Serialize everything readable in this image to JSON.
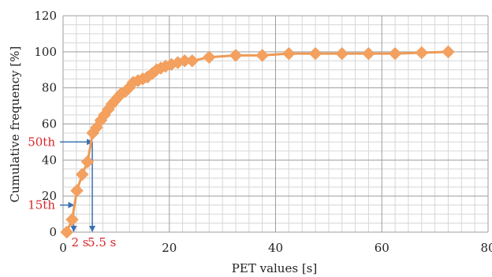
{
  "colors": {
    "series": "#f4a05f",
    "series_line": "#ee9a55",
    "grid_major": "#9e9e9e",
    "grid_minor": "#d6d6d6",
    "annotation_line": "#3b6fb3",
    "annotation_text": "#d9252b"
  },
  "chart_data": {
    "type": "line",
    "title": "",
    "xlabel": "PET values [s]",
    "ylabel": "Cumulative frequency [%]",
    "xlim": [
      0,
      80
    ],
    "ylim": [
      0,
      120
    ],
    "x_ticks": [
      0,
      20,
      40,
      60,
      80
    ],
    "y_ticks": [
      0,
      20,
      40,
      60,
      80,
      100,
      120
    ],
    "x_minor_step": 2.5,
    "y_minor_step": 5,
    "grid": true,
    "legend": "none",
    "series": [
      {
        "marker": "diamond",
        "points": [
          [
            0.7,
            0
          ],
          [
            1.7,
            7
          ],
          [
            2.6,
            23
          ],
          [
            3.6,
            32
          ],
          [
            4.6,
            39
          ],
          [
            5.6,
            55
          ],
          [
            6.3,
            58
          ],
          [
            7.1,
            62
          ],
          [
            7.8,
            65
          ],
          [
            8.5,
            68
          ],
          [
            9.2,
            71
          ],
          [
            9.8,
            73
          ],
          [
            10.4,
            75
          ],
          [
            11.0,
            77
          ],
          [
            11.7,
            78
          ],
          [
            12.4,
            80
          ],
          [
            13.2,
            83
          ],
          [
            14.1,
            84
          ],
          [
            15.0,
            85
          ],
          [
            15.9,
            86
          ],
          [
            16.8,
            88
          ],
          [
            17.6,
            90
          ],
          [
            18.4,
            91
          ],
          [
            19.3,
            92
          ],
          [
            20.4,
            93
          ],
          [
            21.6,
            94
          ],
          [
            22.9,
            95
          ],
          [
            24.3,
            95
          ],
          [
            27.5,
            97
          ],
          [
            32.5,
            98
          ],
          [
            37.5,
            98
          ],
          [
            42.5,
            99
          ],
          [
            47.5,
            99
          ],
          [
            52.5,
            99
          ],
          [
            57.5,
            99
          ],
          [
            62.5,
            99
          ],
          [
            67.5,
            99.5
          ],
          [
            72.5,
            100
          ]
        ]
      }
    ],
    "annotations": [
      {
        "label": "15th",
        "y": 15,
        "x": 2
      },
      {
        "label": "50th",
        "y": 50,
        "x": 5.5
      },
      {
        "label": "2 s",
        "x": 2
      },
      {
        "label": "5.5 s",
        "x": 5.5
      }
    ]
  }
}
